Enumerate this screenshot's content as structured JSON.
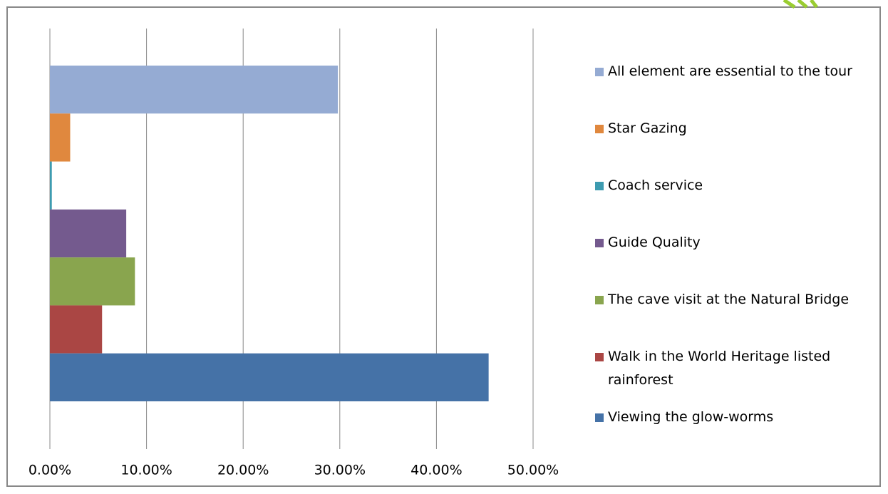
{
  "chart_data": {
    "type": "bar",
    "orientation": "horizontal",
    "series": [
      {
        "name": "All element are essential to the tour",
        "color": "#95abd3",
        "values": [
          29.8
        ]
      },
      {
        "name": "Star Gazing",
        "color": "#e0883e",
        "values": [
          2.1
        ]
      },
      {
        "name": "Coach service",
        "color": "#3d9bb0",
        "values": [
          0.2
        ]
      },
      {
        "name": "Guide Quality",
        "color": "#745a8e",
        "values": [
          7.9
        ]
      },
      {
        "name": "The cave visit at the Natural Bridge",
        "color": "#89a54e",
        "values": [
          8.8
        ]
      },
      {
        "name": "Walk in the World Heritage listed rainforest",
        "color": "#aa4644",
        "values": [
          5.4
        ]
      },
      {
        "name": "Viewing the glow-worms",
        "color": "#4572a7",
        "values": [
          45.4
        ]
      }
    ],
    "xlim": [
      0,
      50
    ],
    "xticks": [
      {
        "value": 0,
        "label": "0.00%"
      },
      {
        "value": 10,
        "label": "10.00%"
      },
      {
        "value": 20,
        "label": "20.00%"
      },
      {
        "value": 30,
        "label": "30.00%"
      },
      {
        "value": 40,
        "label": "40.00%"
      },
      {
        "value": 50,
        "label": "50.00%"
      }
    ],
    "grid": true,
    "legend": "right"
  }
}
